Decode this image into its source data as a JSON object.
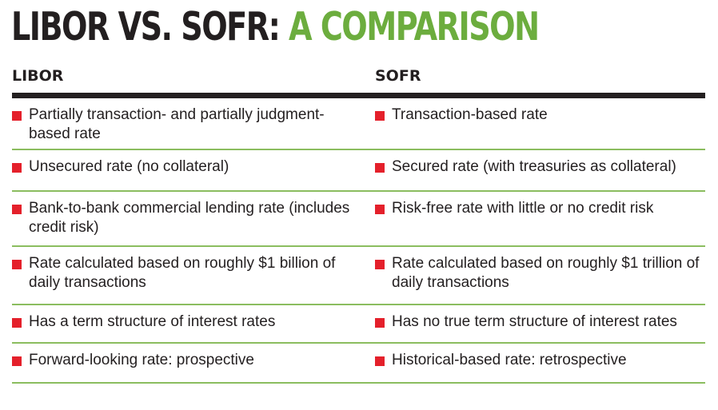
{
  "title": {
    "part1": "LIBOR VS. SOFR: ",
    "part2": "A COMPARISON"
  },
  "headers": {
    "left": "LIBOR",
    "right": "SOFR"
  },
  "colors": {
    "title_dark": "#231f20",
    "title_green": "#6cad3e",
    "bullet": "#e4202b",
    "row_rule": "#8bbd5f",
    "header_rule": "#231f20"
  },
  "rows": [
    {
      "libor": "Partially transaction- and partially judgment-based rate",
      "sofr": "Transaction-based rate"
    },
    {
      "libor": "Unsecured rate (no collateral)",
      "sofr": "Secured rate (with treasuries as collateral)"
    },
    {
      "libor": "Bank-to-bank commercial lending rate (includes credit risk)",
      "sofr": "Risk-free rate with little or no credit risk"
    },
    {
      "libor": "Rate calculated based on roughly $1 billion of daily transactions",
      "sofr": "Rate calculated based on roughly $1 trillion of daily transactions"
    },
    {
      "libor": "Has a term structure of interest rates",
      "sofr": "Has no true term structure of interest rates"
    },
    {
      "libor": "Forward-looking rate: prospective",
      "sofr": "Historical-based rate: retrospective"
    }
  ]
}
